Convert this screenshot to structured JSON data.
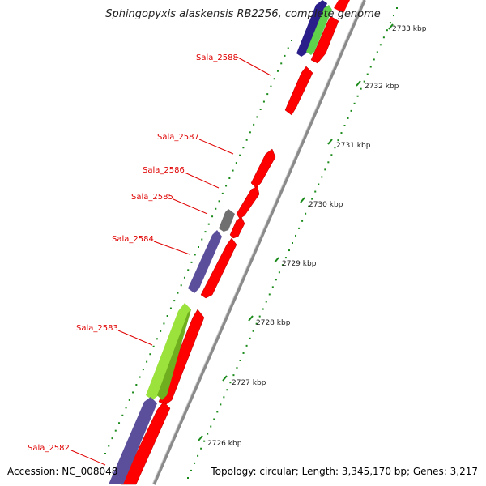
{
  "title": "Sphingopyxis alaskensis RB2256, complete genome",
  "accession": "Accession: NC_008048",
  "topology": "Topology: circular; Length: 3,345,170 bp; Genes: 3,217",
  "colors": {
    "forward_cds": "#ff0000",
    "reverse_cds": "#5b4f9c",
    "reverse_cds_alt": "#9be33c",
    "rna": "#707070",
    "backbone": "#888888",
    "tick": "#1a8a1a",
    "label": "#e00000"
  },
  "kbp_ticks": [
    "2726 kbp",
    "2727 kbp",
    "2728 kbp",
    "2729 kbp",
    "2730 kbp",
    "2731 kbp",
    "2732 kbp",
    "2733 kbp"
  ],
  "genes": [
    {
      "label": "Sala_2588"
    },
    {
      "label": "Sala_2587"
    },
    {
      "label": "Sala_2586"
    },
    {
      "label": "Sala_2585"
    },
    {
      "label": "Sala_2584"
    },
    {
      "label": "Sala_2583"
    },
    {
      "label": "Sala_2582"
    }
  ]
}
